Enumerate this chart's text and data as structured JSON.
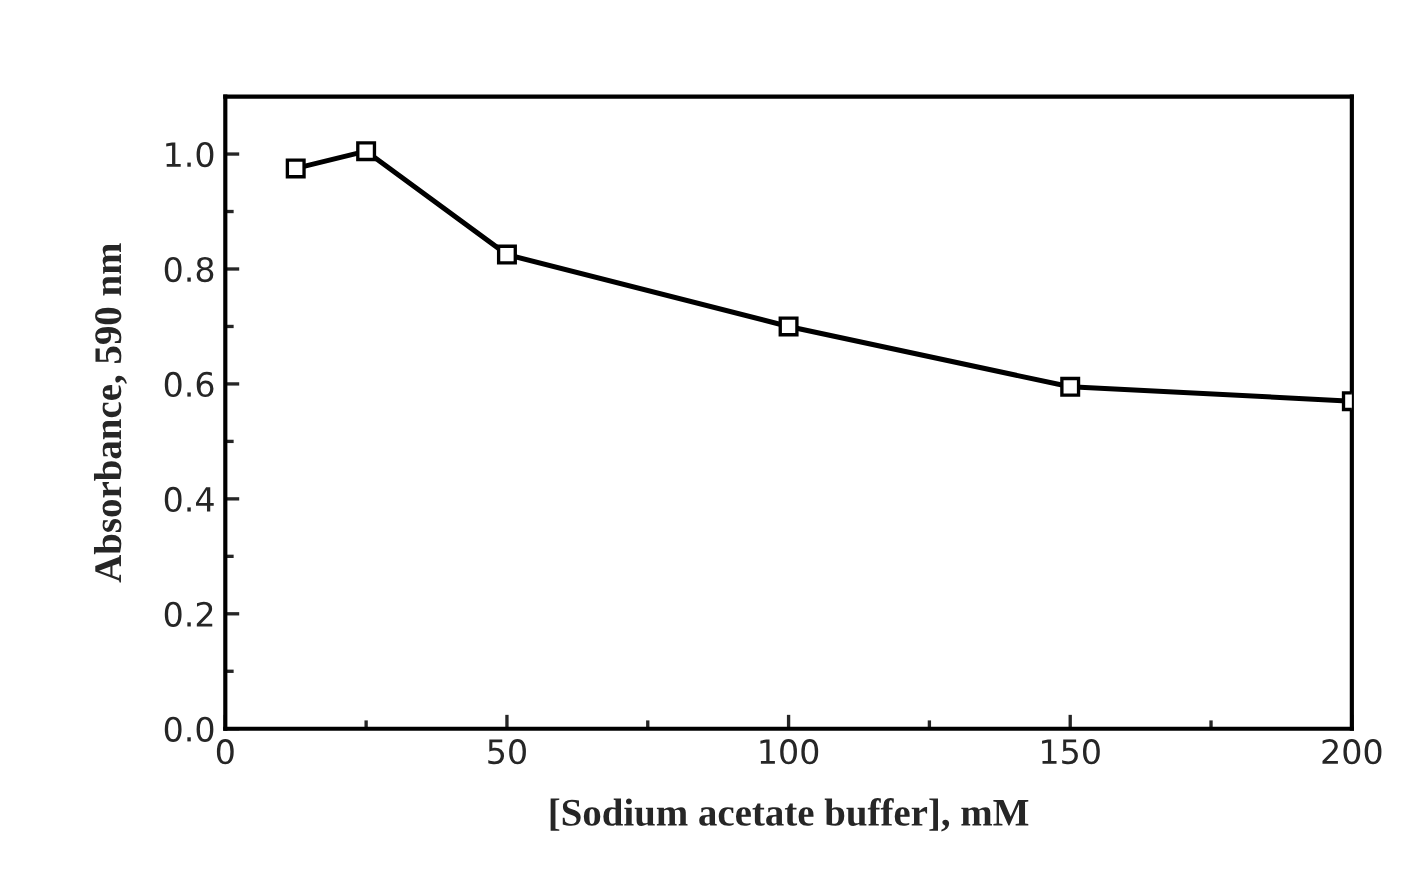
{
  "chart_data": {
    "type": "line",
    "xlabel": "[Sodium acetate buffer], mM",
    "ylabel": "Absorbance, 590 nm",
    "x": [
      12.5,
      25,
      50,
      100,
      150,
      200
    ],
    "series": [
      {
        "color": "#000000",
        "values": [
          0.975,
          1.005,
          0.825,
          0.7,
          0.595,
          0.57
        ]
      }
    ],
    "marker": "square",
    "line_style": "solid",
    "grid": false,
    "xlim": [
      0,
      200
    ],
    "xticks": [
      0,
      {
        "value": 25,
        "label": null
      },
      50,
      {
        "value": 75,
        "label": null
      },
      100,
      {
        "value": 125,
        "label": null
      },
      150,
      {
        "value": 175,
        "label": null
      },
      200
    ],
    "ylim": [
      0,
      1.1
    ],
    "yticks": [
      {
        "value": 0,
        "label": "0.0"
      },
      {
        "value": 0.1,
        "label": null
      },
      {
        "value": 0.2,
        "label": "0.2"
      },
      {
        "value": 0.3,
        "label": null
      },
      {
        "value": 0.4,
        "label": "0.4"
      },
      {
        "value": 0.5,
        "label": null
      },
      {
        "value": 0.6,
        "label": "0.6"
      },
      {
        "value": 0.7,
        "label": null
      },
      {
        "value": 0.8,
        "label": "0.8"
      },
      {
        "value": 0.9,
        "label": null
      },
      {
        "value": 1.0,
        "label": "1.0"
      }
    ]
  }
}
